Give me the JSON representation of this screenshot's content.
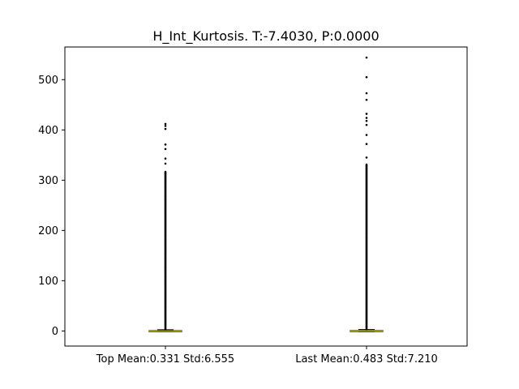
{
  "chart_data": {
    "type": "box",
    "title": "H_Int_Kurtosis. T:-7.4030, P:0.0000",
    "xlabel": "",
    "ylabel": "",
    "ylim": [
      -30,
      565
    ],
    "yticks": [
      0,
      100,
      200,
      300,
      400,
      500
    ],
    "grid": false,
    "categories": [
      "Top Mean:0.331 Std:6.555",
      "Last Mean:0.483 Std:7.210"
    ],
    "boxes": [
      {
        "category": "Top Mean:0.331 Std:6.555",
        "q1": -1.0,
        "median": -0.3,
        "q3": 0.8,
        "whisker_low": -1.6,
        "whisker_high": 2.5,
        "outliers_dense_to": 318,
        "outliers": [
          333,
          343,
          362,
          371,
          402,
          408,
          412
        ]
      },
      {
        "category": "Last Mean:0.483 Std:7.210",
        "q1": -0.9,
        "median": -0.2,
        "q3": 1.0,
        "whisker_low": -1.6,
        "whisker_high": 2.8,
        "outliers_dense_to": 332,
        "outliers": [
          345,
          372,
          390,
          410,
          418,
          424,
          432,
          460,
          473,
          505,
          544
        ]
      }
    ],
    "colors": {
      "median": "#bfbf00",
      "box": "#000000",
      "outlier": "#000000"
    }
  }
}
